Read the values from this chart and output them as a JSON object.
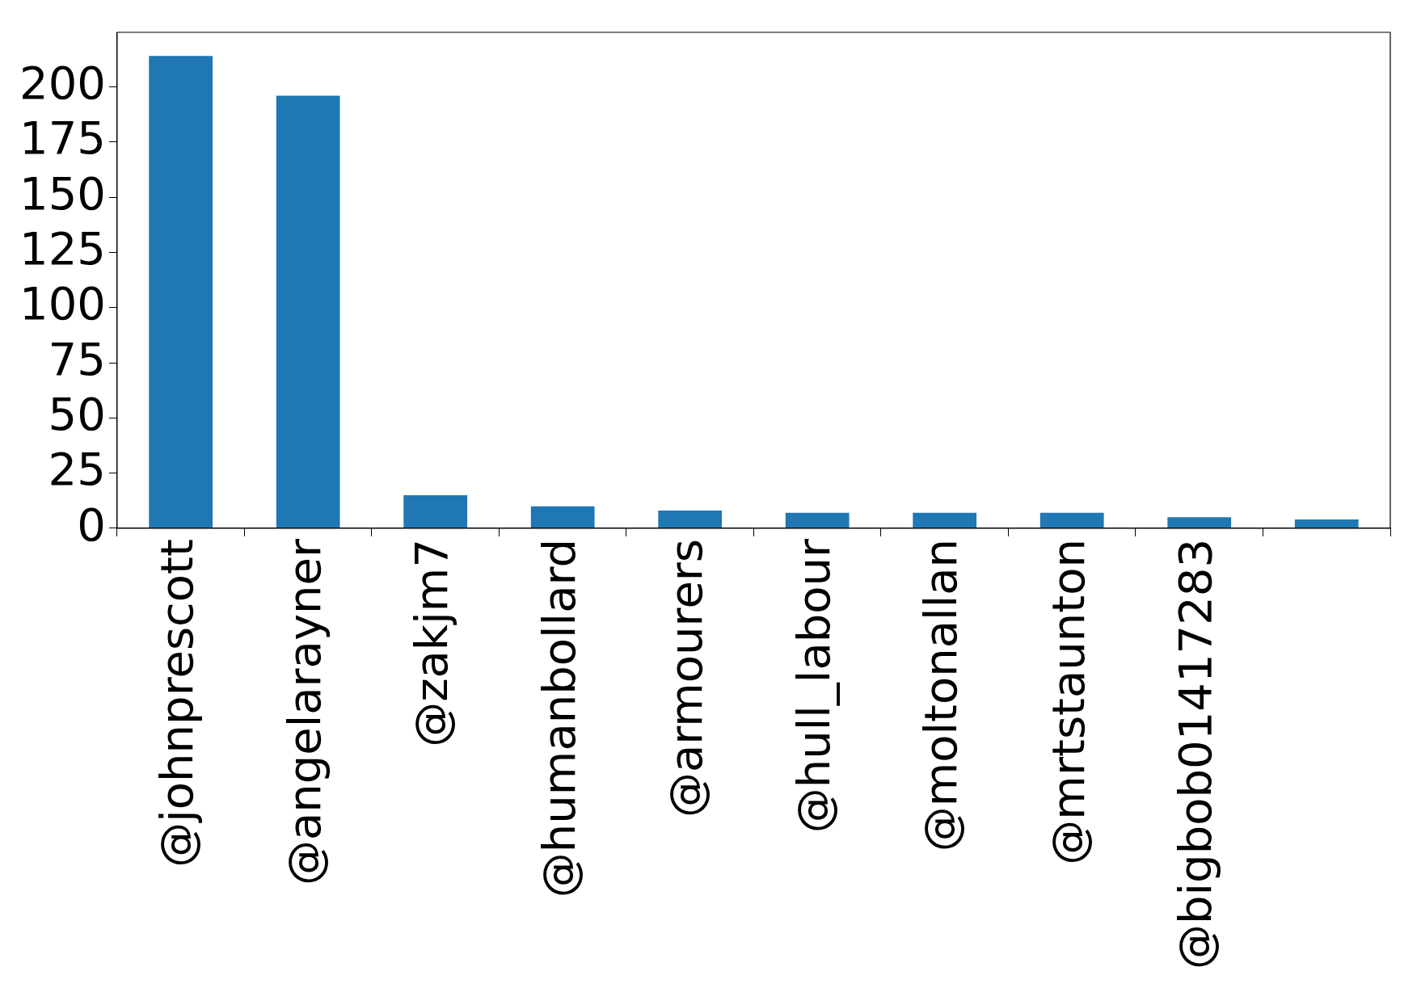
{
  "chart_data": {
    "type": "bar",
    "categories": [
      "@johnprescott",
      "@angelarayner",
      "@zakjm7",
      "@humanbollard",
      "@armourers",
      "@hull_labour",
      "@moltonallan",
      "@mrtstaunton",
      "@bigbob01417283",
      null
    ],
    "values": [
      214,
      196,
      15,
      10,
      8,
      7,
      7,
      7,
      5,
      4
    ],
    "color": "#1f77b4",
    "ylim": [
      0,
      224.7
    ],
    "yticks": [
      0,
      25,
      50,
      75,
      100,
      125,
      150,
      175,
      200
    ],
    "grid": false,
    "legend": false
  }
}
